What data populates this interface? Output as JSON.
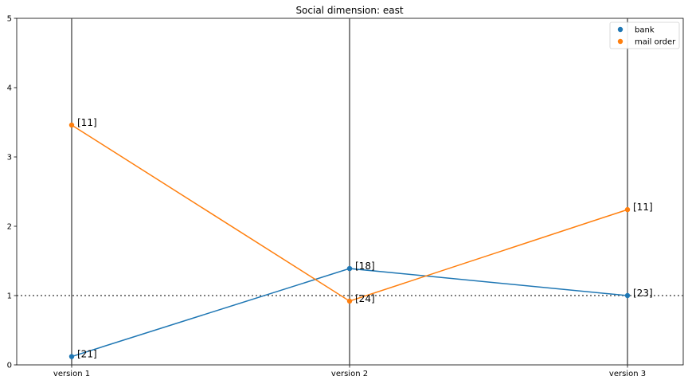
{
  "chart_data": {
    "type": "line",
    "title": "Social dimension: east",
    "xlabel": "",
    "ylabel": "",
    "categories": [
      "version 1",
      "version 2",
      "version 3"
    ],
    "ylim": [
      0,
      5
    ],
    "yticks": [
      0,
      1,
      2,
      3,
      4,
      5
    ],
    "reference_line": {
      "y": 1,
      "style": "dotted",
      "color": "#555555"
    },
    "series": [
      {
        "name": "bank",
        "color": "#1f77b4",
        "values": [
          0.12,
          1.39,
          1.0
        ],
        "labels": [
          "[21]",
          "[18]",
          "[23]"
        ]
      },
      {
        "name": "mail order",
        "color": "#ff7f0e",
        "values": [
          3.46,
          0.92,
          2.24
        ],
        "labels": [
          "[11]",
          "[24]",
          "[11]"
        ]
      }
    ],
    "legend_position": "top-right",
    "grid": false
  }
}
